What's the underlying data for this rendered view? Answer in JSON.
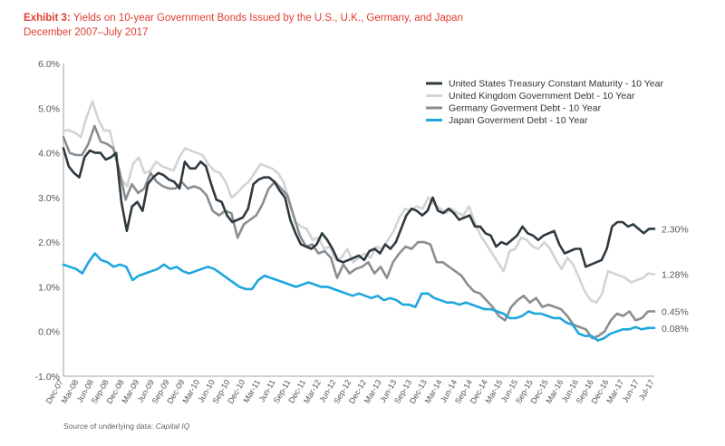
{
  "header": {
    "exhibit": "Exhibit 3:",
    "title": "Yields on 10-year Government Bonds Issued by the U.S., U.K., Germany, and Japan",
    "subtitle": "December 2007–July 2017"
  },
  "footer": {
    "source_label": "Source of underlying data:",
    "source_value": "Capital IQ"
  },
  "chart_data": {
    "type": "line",
    "title": "Yields on 10-year Government Bonds Issued by the U.S., U.K., Germany, and Japan",
    "xlabel": "",
    "ylabel": "",
    "ylim": [
      -1.0,
      6.0
    ],
    "y_ticks": [
      "6.0%",
      "5.0%",
      "4.0%",
      "3.0%",
      "2.0%",
      "1.0%",
      "0.0%",
      "-1.0%"
    ],
    "y_tick_values": [
      6,
      5,
      4,
      3,
      2,
      1,
      0,
      -1
    ],
    "x_ticks": [
      "Dec-07",
      "Mar-08",
      "Jun-08",
      "Sep-08",
      "Dec-08",
      "Mar-09",
      "Jun-09",
      "Sep-09",
      "Dec-09",
      "Mar-10",
      "Jun-10",
      "Sep-10",
      "Dec-10",
      "Mar-11",
      "Jun-11",
      "Sep-11",
      "Dec-11",
      "Mar-12",
      "Jun-12",
      "Sep-12",
      "Dec-12",
      "Mar-13",
      "Jun-13",
      "Sep-13",
      "Dec-13",
      "Mar-14",
      "Jun-14",
      "Sep-14",
      "Dec-14",
      "Mar-15",
      "Jun-15",
      "Sep-15",
      "Dec-15",
      "Mar-16",
      "Jun-16",
      "Sep-16",
      "Dec-16",
      "Mar-17",
      "Jun-17",
      "Jul-17"
    ],
    "legend_position": "top-right",
    "series": [
      {
        "name": "United States Treasury Constant Maturity - 10 Year",
        "color": "#2e3a40",
        "end_label": "2.30%",
        "values": [
          4.1,
          3.7,
          3.55,
          3.45,
          3.9,
          4.05,
          4.0,
          4.0,
          3.85,
          3.9,
          4.0,
          2.9,
          2.25,
          2.8,
          2.9,
          2.7,
          3.3,
          3.45,
          3.55,
          3.5,
          3.4,
          3.35,
          3.2,
          3.8,
          3.65,
          3.65,
          3.8,
          3.7,
          3.3,
          2.95,
          2.9,
          2.6,
          2.45,
          2.5,
          2.55,
          2.75,
          3.3,
          3.4,
          3.45,
          3.45,
          3.35,
          3.15,
          3.0,
          2.5,
          2.2,
          1.95,
          1.9,
          1.85,
          1.95,
          2.2,
          2.05,
          1.85,
          1.6,
          1.55,
          1.6,
          1.65,
          1.7,
          1.6,
          1.8,
          1.85,
          1.75,
          1.95,
          1.85,
          2.0,
          2.3,
          2.6,
          2.75,
          2.7,
          2.6,
          2.7,
          3.0,
          2.7,
          2.65,
          2.75,
          2.65,
          2.5,
          2.55,
          2.6,
          2.35,
          2.35,
          2.2,
          2.15,
          1.9,
          2.0,
          1.95,
          2.05,
          2.15,
          2.35,
          2.2,
          2.15,
          2.05,
          2.15,
          2.2,
          2.25,
          1.95,
          1.75,
          1.8,
          1.85,
          1.85,
          1.45,
          1.5,
          1.55,
          1.6,
          1.85,
          2.35,
          2.45,
          2.45,
          2.35,
          2.4,
          2.3,
          2.2,
          2.3,
          2.3
        ]
      },
      {
        "name": "United Kingdom Government Debt - 10 Year",
        "color": "#d3d3d3",
        "end_label": "1.28%",
        "values": [
          4.5,
          4.5,
          4.45,
          4.35,
          4.8,
          5.15,
          4.75,
          4.5,
          4.5,
          3.95,
          3.4,
          3.25,
          3.75,
          3.9,
          3.55,
          3.6,
          3.8,
          3.7,
          3.65,
          3.6,
          3.9,
          4.1,
          4.05,
          4.0,
          3.95,
          3.75,
          3.6,
          3.55,
          3.35,
          3.0,
          3.1,
          3.25,
          3.35,
          3.55,
          3.75,
          3.7,
          3.65,
          3.55,
          3.35,
          2.9,
          2.45,
          2.35,
          2.3,
          2.05,
          2.1,
          1.85,
          1.9,
          1.6,
          1.65,
          1.85,
          1.55,
          1.65,
          1.75,
          1.65,
          1.9,
          1.85,
          2.05,
          2.25,
          2.55,
          2.75,
          2.7,
          2.8,
          2.75,
          3.0,
          2.85,
          2.75,
          2.65,
          2.75,
          2.65,
          2.6,
          2.8,
          2.45,
          2.15,
          1.95,
          1.75,
          1.55,
          1.35,
          1.8,
          1.85,
          2.1,
          2.05,
          1.9,
          1.85,
          2.0,
          1.85,
          1.6,
          1.4,
          1.65,
          1.5,
          1.2,
          0.9,
          0.7,
          0.65,
          0.85,
          1.35,
          1.3,
          1.25,
          1.2,
          1.1,
          1.15,
          1.2,
          1.3,
          1.28
        ]
      },
      {
        "name": "Germany Goverment Debt - 10 Year",
        "color": "#8a8d91",
        "end_label": "0.45%",
        "values": [
          4.35,
          4.0,
          3.95,
          3.95,
          4.2,
          4.6,
          4.25,
          4.2,
          4.1,
          3.6,
          2.95,
          3.3,
          3.1,
          3.2,
          3.55,
          3.35,
          3.25,
          3.2,
          3.2,
          3.35,
          3.2,
          3.25,
          3.2,
          3.05,
          2.7,
          2.6,
          2.7,
          2.65,
          2.1,
          2.4,
          2.5,
          2.6,
          2.85,
          3.2,
          3.35,
          3.2,
          3.05,
          2.6,
          2.15,
          1.9,
          1.95,
          1.75,
          1.8,
          1.65,
          1.2,
          1.5,
          1.3,
          1.4,
          1.45,
          1.55,
          1.3,
          1.45,
          1.2,
          1.55,
          1.75,
          1.9,
          1.85,
          2.0,
          2.0,
          1.95,
          1.55,
          1.55,
          1.45,
          1.35,
          1.25,
          1.05,
          0.9,
          0.85,
          0.7,
          0.55,
          0.35,
          0.25,
          0.55,
          0.7,
          0.8,
          0.65,
          0.75,
          0.55,
          0.6,
          0.55,
          0.5,
          0.35,
          0.15,
          0.1,
          0.05,
          -0.15,
          -0.1,
          0.0,
          0.25,
          0.4,
          0.35,
          0.45,
          0.25,
          0.3,
          0.45,
          0.45
        ]
      },
      {
        "name": "Japan Goverment Debt - 10 Year",
        "color": "#1ea7dd",
        "end_label": "0.08%",
        "values": [
          1.5,
          1.45,
          1.4,
          1.3,
          1.55,
          1.75,
          1.6,
          1.55,
          1.45,
          1.5,
          1.45,
          1.15,
          1.25,
          1.3,
          1.35,
          1.4,
          1.5,
          1.4,
          1.45,
          1.35,
          1.3,
          1.35,
          1.4,
          1.45,
          1.4,
          1.3,
          1.2,
          1.1,
          1.0,
          0.95,
          0.95,
          1.15,
          1.25,
          1.2,
          1.15,
          1.1,
          1.05,
          1.0,
          1.05,
          1.1,
          1.05,
          1.0,
          1.0,
          0.95,
          0.9,
          0.85,
          0.8,
          0.85,
          0.8,
          0.75,
          0.8,
          0.7,
          0.75,
          0.7,
          0.6,
          0.6,
          0.55,
          0.85,
          0.85,
          0.75,
          0.7,
          0.65,
          0.65,
          0.6,
          0.65,
          0.6,
          0.55,
          0.5,
          0.5,
          0.45,
          0.4,
          0.3,
          0.3,
          0.35,
          0.45,
          0.4,
          0.4,
          0.35,
          0.3,
          0.3,
          0.2,
          0.15,
          -0.05,
          -0.1,
          -0.1,
          -0.2,
          -0.15,
          -0.05,
          0.0,
          0.05,
          0.05,
          0.1,
          0.05,
          0.08,
          0.08
        ]
      }
    ]
  }
}
